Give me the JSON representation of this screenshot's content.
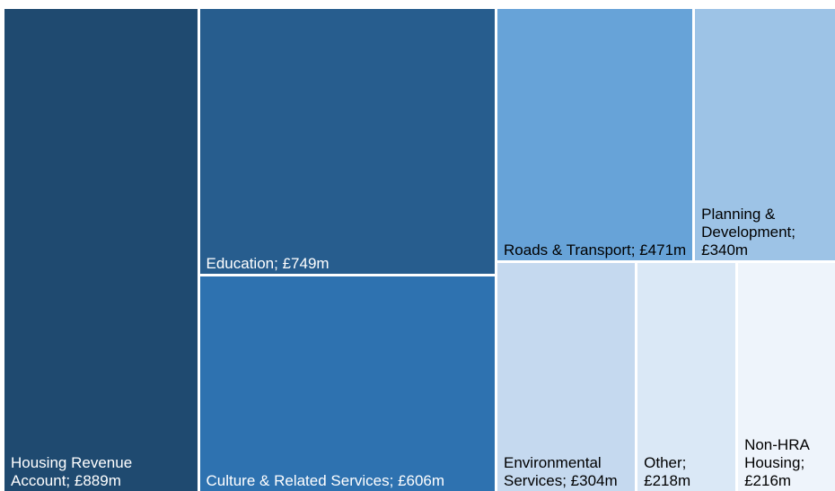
{
  "chart_data": {
    "type": "treemap",
    "categories": [
      "Housing Revenue Account;",
      "Education;",
      "Culture & Related Services;",
      "Roads & Transport;",
      "Planning & Development;",
      "Environmental Services;",
      "Other;",
      "Non-HRA Housing;"
    ],
    "values": [
      889,
      749,
      606,
      471,
      340,
      304,
      218,
      216
    ],
    "value_labels": [
      "£889m",
      "£749m",
      "£606m",
      "£471m",
      "£340m",
      "£304m",
      "£218m",
      "£216m"
    ],
    "colors": [
      "#1f4a70",
      "#275d8e",
      "#2e72b0",
      "#67a3d8",
      "#9dc3e6",
      "#c5d9ef",
      "#dae8f6",
      "#eef4fb"
    ]
  }
}
